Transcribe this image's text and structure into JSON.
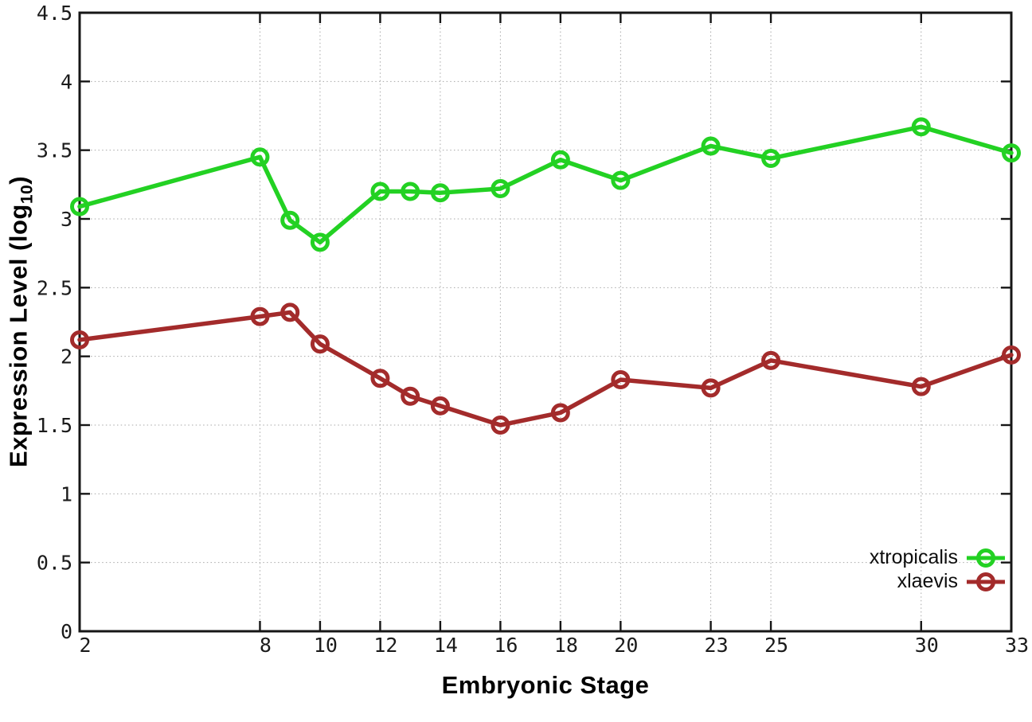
{
  "chart_data": {
    "type": "line",
    "title": "",
    "xlabel": "Embryonic Stage",
    "ylabel_prefix": "Expression Level (log",
    "ylabel_sub": "10",
    "ylabel_suffix": ")",
    "xlim": [
      2,
      33
    ],
    "ylim": [
      0,
      4.5
    ],
    "grid": true,
    "legend_position": "inside-bottom-right",
    "x": [
      2,
      8,
      9,
      10,
      12,
      13,
      14,
      16,
      18,
      20,
      23,
      25,
      30,
      33
    ],
    "x_ticks": [
      2,
      8,
      10,
      12,
      14,
      16,
      18,
      20,
      23,
      25,
      30,
      33
    ],
    "x_tick_labels": [
      "2",
      "8",
      "10",
      "12",
      "14",
      "16",
      "18",
      "20",
      "23",
      "25",
      "30",
      "33"
    ],
    "y_ticks": [
      0,
      0.5,
      1,
      1.5,
      2,
      2.5,
      3,
      3.5,
      4,
      4.5
    ],
    "y_tick_labels": [
      "0",
      "0.5",
      "1",
      "1.5",
      "2",
      "2.5",
      "3",
      "3.5",
      "4",
      "4.5"
    ],
    "series": [
      {
        "name": "xtropicalis",
        "color": "#23d123",
        "values": [
          3.09,
          3.45,
          2.99,
          2.83,
          3.2,
          3.2,
          3.19,
          3.22,
          3.43,
          3.28,
          3.53,
          3.44,
          3.67,
          3.48
        ]
      },
      {
        "name": "xlaevis",
        "color": "#a32b2b",
        "values": [
          2.12,
          2.29,
          2.32,
          2.09,
          1.84,
          1.71,
          1.64,
          1.5,
          1.59,
          1.83,
          1.77,
          1.97,
          1.78,
          2.01
        ]
      }
    ]
  },
  "style": {
    "frame_color": "#161616",
    "grid_color": "#a8a8a8",
    "text_color": "#1b1b1b"
  }
}
